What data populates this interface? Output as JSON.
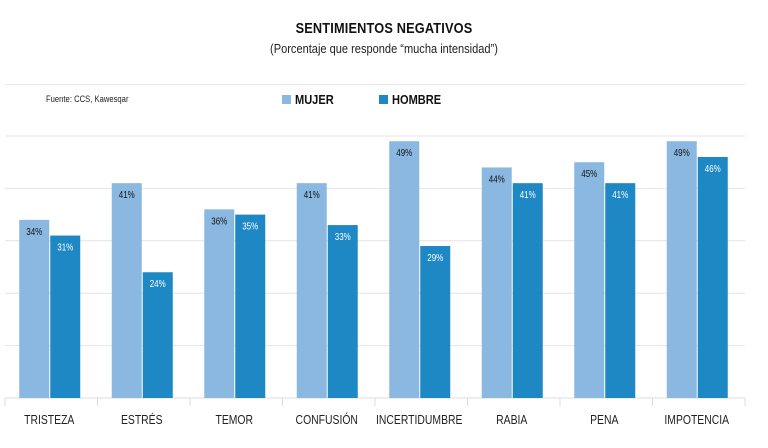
{
  "chart_data": {
    "type": "bar",
    "title": "SENTIMIENTOS NEGATIVOS",
    "subtitle": "(Porcentaje que responde “mucha intensidad”)",
    "source": "Fuente: CCS, Kawesqar",
    "xlabel": "",
    "ylabel": "",
    "ylim": [
      0,
      50
    ],
    "grid": true,
    "legend_position": "top-center",
    "categories": [
      "TRISTEZA",
      "ESTRÉS",
      "TEMOR",
      "CONFUSIÓN",
      "INCERTIDUMBRE",
      "RABIA",
      "PENA",
      "IMPOTENCIA"
    ],
    "series": [
      {
        "name": "MUJER",
        "color": "#8ab8e0",
        "label_color": "#111111",
        "values": [
          34,
          41,
          36,
          41,
          49,
          44,
          45,
          49
        ],
        "labels": [
          "34%",
          "41%",
          "36%",
          "41%",
          "49%",
          "44%",
          "45%",
          "49%"
        ]
      },
      {
        "name": "HOMBRE",
        "color": "#1e88c4",
        "label_color": "#ffffff",
        "values": [
          31,
          24,
          35,
          33,
          29,
          41,
          41,
          46
        ],
        "labels": [
          "31%",
          "24%",
          "35%",
          "33%",
          "29%",
          "41%",
          "41%",
          "46%"
        ]
      }
    ]
  }
}
